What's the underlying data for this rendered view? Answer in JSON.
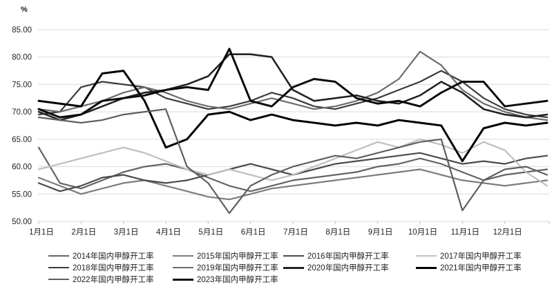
{
  "chart_data": {
    "type": "line",
    "title": "",
    "ylabel": "%",
    "xlabel": "",
    "ylim": [
      50,
      85
    ],
    "grid": "horizontal",
    "legend_position": "bottom",
    "y_tick_labels": [
      "85.00",
      "80.00",
      "75.00",
      "70.00",
      "65.00",
      "60.00",
      "55.00",
      "50.00"
    ],
    "y_ticks": [
      85,
      80,
      75,
      70,
      65,
      60,
      55,
      50
    ],
    "x_tick_labels": [
      "1月1日",
      "2月1日",
      "3月1日",
      "4月1日",
      "5月1日",
      "6月1日",
      "7月1日",
      "8月1日",
      "9月1日",
      "10月1日",
      "11月1日",
      "12月1日"
    ],
    "x_unit": "months_since_jan1",
    "x": [
      0,
      0.5,
      1,
      1.5,
      2,
      2.5,
      3,
      3.5,
      4,
      4.5,
      5,
      5.5,
      6,
      6.5,
      7,
      7.5,
      8,
      8.5,
      9,
      9.5,
      10,
      10.5,
      11,
      11.5,
      12
    ],
    "series": [
      {
        "name": "2014年国内甲醇开工率",
        "color": "#636363",
        "width": 2.2,
        "values": [
          63.5,
          57,
          56,
          57.5,
          59,
          60,
          60.5,
          59.5,
          58,
          56.5,
          55.5,
          56.5,
          57.5,
          58,
          58.5,
          59,
          60,
          60.5,
          61.5,
          60.5,
          59,
          57.5,
          58.5,
          59,
          59.5
        ]
      },
      {
        "name": "2015年国内甲醇开工率",
        "color": "#7c7c7c",
        "width": 2.2,
        "values": [
          58,
          56.5,
          55,
          56,
          57,
          57.5,
          56.5,
          55.5,
          54.5,
          54,
          55,
          56,
          56.5,
          57,
          57.5,
          58,
          58.5,
          59,
          59.5,
          58.5,
          57.5,
          57,
          56.5,
          57,
          57.5
        ]
      },
      {
        "name": "2016年国内甲醇开工率",
        "color": "#4a4a4a",
        "width": 2.2,
        "values": [
          57,
          55.5,
          56.5,
          58,
          58.5,
          57.5,
          57,
          57.5,
          58.5,
          59.5,
          60.5,
          59.5,
          58.5,
          59.5,
          60.5,
          61,
          61.5,
          62,
          62.5,
          61.5,
          60.5,
          61,
          60.5,
          61.5,
          62
        ]
      },
      {
        "name": "2017年国内甲醇开工率",
        "color": "#bfbfbf",
        "width": 2.2,
        "values": [
          59.5,
          60.5,
          61.5,
          62.5,
          63.5,
          62.5,
          61,
          59.5,
          58.5,
          59.5,
          58.5,
          57.5,
          58.5,
          60,
          61.5,
          63,
          64.5,
          63.5,
          65,
          64,
          62.5,
          64.5,
          63,
          59,
          56.5
        ]
      },
      {
        "name": "2018年国内甲醇开工率",
        "color": "#3b3b3b",
        "width": 2.2,
        "values": [
          69.5,
          70,
          74.5,
          75.5,
          75,
          74.5,
          72.5,
          71.5,
          70.5,
          71,
          72,
          73.5,
          72.5,
          71,
          70.5,
          71.5,
          72.5,
          74,
          75.5,
          77.5,
          75.5,
          72.5,
          70.5,
          69.5,
          69
        ]
      },
      {
        "name": "2019年国内甲醇开工率",
        "color": "#6b6b6b",
        "width": 2.2,
        "values": [
          70.5,
          70,
          71,
          72,
          73.5,
          74.5,
          73.5,
          72,
          71,
          70.5,
          71.5,
          72.5,
          71.5,
          70.5,
          71,
          72,
          73.5,
          76,
          81,
          78.5,
          74,
          71.5,
          70,
          69,
          68.5
        ]
      },
      {
        "name": "2020年国内甲醇开工率",
        "color": "#222222",
        "width": 2.6,
        "values": [
          70,
          68.5,
          69.5,
          71,
          72.5,
          73.5,
          74,
          75,
          76.5,
          80.5,
          80.5,
          80,
          74,
          72,
          72.5,
          73,
          72,
          71.5,
          73,
          75.5,
          73.5,
          70.5,
          69.5,
          69,
          69.5
        ]
      },
      {
        "name": "2021年国内甲醇开工率",
        "color": "#000000",
        "width": 3.0,
        "values": [
          72,
          71.5,
          71,
          77,
          77.5,
          72,
          63.5,
          65,
          69.5,
          70,
          68.5,
          69.5,
          68.5,
          68,
          67.5,
          68,
          67.5,
          68.5,
          68,
          67.5,
          61,
          67,
          68,
          67.5,
          68
        ]
      },
      {
        "name": "2022年国内甲醇开工率",
        "color": "#5e5e5e",
        "width": 2.2,
        "values": [
          69,
          68.5,
          68,
          68.5,
          69.5,
          70,
          70.5,
          60,
          57,
          51.5,
          56.5,
          58.5,
          60,
          61,
          62,
          61.5,
          62.5,
          63.5,
          64.5,
          65,
          52,
          57.5,
          59.5,
          60,
          58.5
        ]
      },
      {
        "name": "2023年国内甲醇开工率",
        "color": "#0a0a0a",
        "width": 3.0,
        "values": [
          70.5,
          69,
          69.5,
          72,
          72.5,
          73,
          74,
          74.5,
          74,
          81.5,
          72,
          71,
          74.5,
          76,
          75.5,
          72.5,
          71.5,
          72,
          71,
          73.5,
          75.5,
          75.5,
          71,
          71.5,
          72
        ]
      }
    ],
    "grid_color": "#d9d9d9",
    "tick_color": "#bfbfbf",
    "text_color": "#1f1f1f"
  }
}
